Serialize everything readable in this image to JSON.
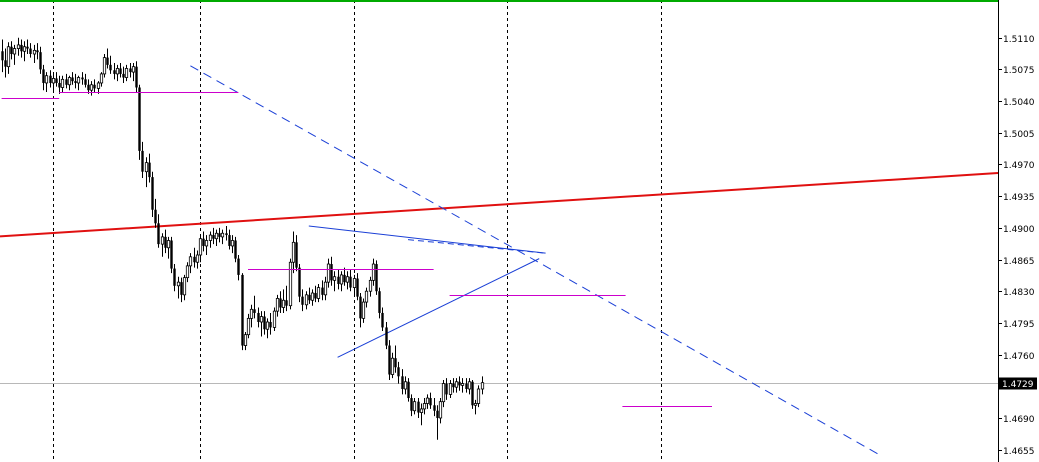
{
  "chart_data": {
    "type": "candlestick",
    "ylim": [
      1.4648,
      1.5145
    ],
    "current_price": "1.4729",
    "colors": {
      "background": "#ffffff",
      "candle": "#000000",
      "grid": "#000000",
      "border_top": "#00aa00",
      "trendline_red": "#e01010",
      "dashed_blue": "#1a3fd6",
      "level_magenta": "#cc00cc",
      "price_line": "#b8b8b8",
      "price_tag_bg": "#000000"
    },
    "y_ticks": [
      {
        "value": 1.511,
        "label": "1.5110"
      },
      {
        "value": 1.5075,
        "label": "1.5075"
      },
      {
        "value": 1.504,
        "label": "1.5040"
      },
      {
        "value": 1.5005,
        "label": "1.5005"
      },
      {
        "value": 1.497,
        "label": "1.4970"
      },
      {
        "value": 1.4935,
        "label": "1.4935"
      },
      {
        "value": 1.49,
        "label": "1.4900"
      },
      {
        "value": 1.4865,
        "label": "1.4865"
      },
      {
        "value": 1.483,
        "label": "1.4830"
      },
      {
        "value": 1.4795,
        "label": "1.4795"
      },
      {
        "value": 1.476,
        "label": "1.4760"
      },
      {
        "value": 1.469,
        "label": "1.4690"
      },
      {
        "value": 1.4655,
        "label": "1.4655"
      }
    ],
    "vertical_grid_bars": [
      16,
      62,
      110,
      158,
      206
    ],
    "candles": [
      [
        1.5095,
        1.5108,
        1.5072,
        1.5085
      ],
      [
        1.5085,
        1.5098,
        1.5066,
        1.5078
      ],
      [
        1.5078,
        1.5105,
        1.507,
        1.51
      ],
      [
        1.51,
        1.5106,
        1.5086,
        1.5092
      ],
      [
        1.5092,
        1.5102,
        1.508,
        1.5098
      ],
      [
        1.5098,
        1.511,
        1.509,
        1.5102
      ],
      [
        1.5102,
        1.5108,
        1.5088,
        1.5095
      ],
      [
        1.5095,
        1.5106,
        1.5084,
        1.51
      ],
      [
        1.51,
        1.5108,
        1.5092,
        1.5098
      ],
      [
        1.5098,
        1.5104,
        1.5088,
        1.5092
      ],
      [
        1.5092,
        1.5102,
        1.5082,
        1.5096
      ],
      [
        1.5096,
        1.5104,
        1.5086,
        1.5094
      ],
      [
        1.5094,
        1.51,
        1.507,
        1.5075
      ],
      [
        1.5075,
        1.508,
        1.5052,
        1.506
      ],
      [
        1.506,
        1.5072,
        1.505,
        1.5068
      ],
      [
        1.5068,
        1.5074,
        1.5055,
        1.506
      ],
      [
        1.506,
        1.507,
        1.5052,
        1.5065
      ],
      [
        1.5065,
        1.5072,
        1.5056,
        1.506
      ],
      [
        1.506,
        1.5068,
        1.5048,
        1.5055
      ],
      [
        1.5055,
        1.5068,
        1.505,
        1.5064
      ],
      [
        1.5064,
        1.507,
        1.5054,
        1.5058
      ],
      [
        1.5058,
        1.5068,
        1.5052,
        1.5066
      ],
      [
        1.5066,
        1.5072,
        1.5058,
        1.5062
      ],
      [
        1.5062,
        1.507,
        1.5054,
        1.506
      ],
      [
        1.506,
        1.5068,
        1.5052,
        1.5066
      ],
      [
        1.5066,
        1.5072,
        1.5058,
        1.5064
      ],
      [
        1.5064,
        1.507,
        1.5055,
        1.5058
      ],
      [
        1.5058,
        1.5064,
        1.5048,
        1.5052
      ],
      [
        1.5052,
        1.5062,
        1.5046,
        1.5058
      ],
      [
        1.5058,
        1.5064,
        1.505,
        1.5054
      ],
      [
        1.5054,
        1.5062,
        1.5048,
        1.506
      ],
      [
        1.506,
        1.5072,
        1.5056,
        1.507
      ],
      [
        1.507,
        1.5092,
        1.5066,
        1.5088
      ],
      [
        1.5088,
        1.5098,
        1.5076,
        1.508
      ],
      [
        1.508,
        1.509,
        1.507,
        1.5074
      ],
      [
        1.5074,
        1.5082,
        1.5064,
        1.507
      ],
      [
        1.507,
        1.508,
        1.5062,
        1.5076
      ],
      [
        1.5076,
        1.5082,
        1.5066,
        1.507
      ],
      [
        1.507,
        1.5078,
        1.506,
        1.5066
      ],
      [
        1.5066,
        1.508,
        1.5062,
        1.5076
      ],
      [
        1.5076,
        1.5082,
        1.5066,
        1.5072
      ],
      [
        1.5072,
        1.5082,
        1.5062,
        1.5078
      ],
      [
        1.5078,
        1.5084,
        1.505,
        1.5055
      ],
      [
        1.5055,
        1.5058,
        1.4975,
        1.4985
      ],
      [
        1.4985,
        1.4995,
        1.4955,
        1.4962
      ],
      [
        1.4962,
        1.4978,
        1.4945,
        1.4972
      ],
      [
        1.4972,
        1.4982,
        1.495,
        1.4956
      ],
      [
        1.4956,
        1.4962,
        1.4912,
        1.492
      ],
      [
        1.492,
        1.4932,
        1.49,
        1.4905
      ],
      [
        1.4905,
        1.4915,
        1.4878,
        1.4882
      ],
      [
        1.4882,
        1.4894,
        1.4868,
        1.489
      ],
      [
        1.489,
        1.4898,
        1.4872,
        1.4878
      ],
      [
        1.4878,
        1.489,
        1.4866,
        1.4886
      ],
      [
        1.4886,
        1.489,
        1.485,
        1.4855
      ],
      [
        1.4855,
        1.486,
        1.483,
        1.4836
      ],
      [
        1.4836,
        1.4846,
        1.4822,
        1.484
      ],
      [
        1.484,
        1.4845,
        1.4818,
        1.4826
      ],
      [
        1.4826,
        1.4848,
        1.482,
        1.4845
      ],
      [
        1.4845,
        1.4862,
        1.484,
        1.4858
      ],
      [
        1.4858,
        1.4872,
        1.485,
        1.4868
      ],
      [
        1.4868,
        1.4878,
        1.4856,
        1.4862
      ],
      [
        1.4862,
        1.4875,
        1.4855,
        1.487
      ],
      [
        1.487,
        1.4892,
        1.4862,
        1.4888
      ],
      [
        1.4888,
        1.4896,
        1.4874,
        1.488
      ],
      [
        1.488,
        1.4892,
        1.487,
        1.4886
      ],
      [
        1.4886,
        1.4896,
        1.4878,
        1.4892
      ],
      [
        1.4892,
        1.49,
        1.4882,
        1.4888
      ],
      [
        1.4888,
        1.4898,
        1.488,
        1.4894
      ],
      [
        1.4894,
        1.49,
        1.4884,
        1.489
      ],
      [
        1.489,
        1.4898,
        1.4882,
        1.4894
      ],
      [
        1.4894,
        1.4902,
        1.4886,
        1.4892
      ],
      [
        1.4892,
        1.4898,
        1.4876,
        1.488
      ],
      [
        1.488,
        1.4892,
        1.4872,
        1.4886
      ],
      [
        1.4886,
        1.489,
        1.4862,
        1.4866
      ],
      [
        1.4866,
        1.487,
        1.4842,
        1.4848
      ],
      [
        1.4848,
        1.485,
        1.4765,
        1.477
      ],
      [
        1.477,
        1.4785,
        1.4765,
        1.4782
      ],
      [
        1.4782,
        1.4805,
        1.4778,
        1.48
      ],
      [
        1.48,
        1.4815,
        1.479,
        1.481
      ],
      [
        1.481,
        1.4825,
        1.48,
        1.4806
      ],
      [
        1.4806,
        1.4812,
        1.479,
        1.4796
      ],
      [
        1.4796,
        1.4808,
        1.478,
        1.4802
      ],
      [
        1.4802,
        1.4808,
        1.4782,
        1.4788
      ],
      [
        1.4788,
        1.48,
        1.4778,
        1.4796
      ],
      [
        1.4796,
        1.4806,
        1.4782,
        1.479
      ],
      [
        1.479,
        1.4812,
        1.4786,
        1.4808
      ],
      [
        1.4808,
        1.4826,
        1.4802,
        1.4822
      ],
      [
        1.4822,
        1.483,
        1.4806,
        1.4812
      ],
      [
        1.4812,
        1.4832,
        1.4806,
        1.482
      ],
      [
        1.482,
        1.4836,
        1.4808,
        1.4814
      ],
      [
        1.4814,
        1.4866,
        1.481,
        1.4862
      ],
      [
        1.4862,
        1.4896,
        1.485,
        1.4884
      ],
      [
        1.4884,
        1.4892,
        1.4852,
        1.4856
      ],
      [
        1.4856,
        1.486,
        1.4818,
        1.4824
      ],
      [
        1.4824,
        1.4832,
        1.4808,
        1.4815
      ],
      [
        1.4815,
        1.483,
        1.481,
        1.4826
      ],
      [
        1.4826,
        1.4834,
        1.4816,
        1.482
      ],
      [
        1.482,
        1.4832,
        1.4814,
        1.4828
      ],
      [
        1.4828,
        1.4836,
        1.4818,
        1.4822
      ],
      [
        1.4822,
        1.4838,
        1.4818,
        1.4834
      ],
      [
        1.4834,
        1.4842,
        1.482,
        1.4826
      ],
      [
        1.4826,
        1.4846,
        1.482,
        1.484
      ],
      [
        1.484,
        1.4866,
        1.4834,
        1.486
      ],
      [
        1.486,
        1.4868,
        1.4836,
        1.4842
      ],
      [
        1.4842,
        1.4852,
        1.483,
        1.4846
      ],
      [
        1.4846,
        1.4854,
        1.4832,
        1.4838
      ],
      [
        1.4838,
        1.4852,
        1.483,
        1.4848
      ],
      [
        1.4848,
        1.4856,
        1.4836,
        1.484
      ],
      [
        1.484,
        1.4852,
        1.4832,
        1.4846
      ],
      [
        1.4846,
        1.4854,
        1.483,
        1.4834
      ],
      [
        1.4834,
        1.4848,
        1.4826,
        1.4844
      ],
      [
        1.4844,
        1.485,
        1.482,
        1.4824
      ],
      [
        1.4824,
        1.4828,
        1.479,
        1.48
      ],
      [
        1.48,
        1.4822,
        1.4795,
        1.4818
      ],
      [
        1.4818,
        1.4834,
        1.4812,
        1.483
      ],
      [
        1.483,
        1.4846,
        1.4824,
        1.4842
      ],
      [
        1.4842,
        1.4866,
        1.4836,
        1.486
      ],
      [
        1.486,
        1.4864,
        1.4826,
        1.483
      ],
      [
        1.483,
        1.4834,
        1.48,
        1.4806
      ],
      [
        1.4806,
        1.4812,
        1.4786,
        1.479
      ],
      [
        1.479,
        1.4796,
        1.4766,
        1.477
      ],
      [
        1.477,
        1.4776,
        1.4732,
        1.4738
      ],
      [
        1.4738,
        1.4762,
        1.4734,
        1.4756
      ],
      [
        1.4756,
        1.477,
        1.474,
        1.4746
      ],
      [
        1.4746,
        1.4752,
        1.4728,
        1.4736
      ],
      [
        1.4736,
        1.4744,
        1.4716,
        1.4722
      ],
      [
        1.4722,
        1.4736,
        1.4716,
        1.473
      ],
      [
        1.473,
        1.4734,
        1.4708,
        1.4712
      ],
      [
        1.4712,
        1.4716,
        1.4692,
        1.4698
      ],
      [
        1.4698,
        1.4712,
        1.4694,
        1.4708
      ],
      [
        1.4708,
        1.4712,
        1.469,
        1.4696
      ],
      [
        1.4696,
        1.4706,
        1.4682,
        1.47
      ],
      [
        1.47,
        1.4712,
        1.4694,
        1.4706
      ],
      [
        1.4706,
        1.4716,
        1.47,
        1.4712
      ],
      [
        1.4712,
        1.4718,
        1.47,
        1.4704
      ],
      [
        1.4704,
        1.4712,
        1.4692,
        1.4698
      ],
      [
        1.4698,
        1.4704,
        1.4666,
        1.469
      ],
      [
        1.469,
        1.4712,
        1.4684,
        1.4708
      ],
      [
        1.4708,
        1.4732,
        1.4702,
        1.4728
      ],
      [
        1.4728,
        1.4734,
        1.471,
        1.4716
      ],
      [
        1.4716,
        1.4732,
        1.4712,
        1.4728
      ],
      [
        1.4728,
        1.4734,
        1.4718,
        1.4724
      ],
      [
        1.4724,
        1.4734,
        1.4718,
        1.473
      ],
      [
        1.473,
        1.4736,
        1.472,
        1.4726
      ],
      [
        1.4726,
        1.4734,
        1.4718,
        1.4728
      ],
      [
        1.4728,
        1.4734,
        1.4718,
        1.4722
      ],
      [
        1.4722,
        1.4734,
        1.4716,
        1.473
      ],
      [
        1.473,
        1.4732,
        1.47,
        1.4704
      ],
      [
        1.4704,
        1.471,
        1.4694,
        1.4706
      ],
      [
        1.4706,
        1.4726,
        1.4702,
        1.4722
      ],
      [
        1.4722,
        1.4736,
        1.4716,
        1.4729
      ]
    ]
  }
}
